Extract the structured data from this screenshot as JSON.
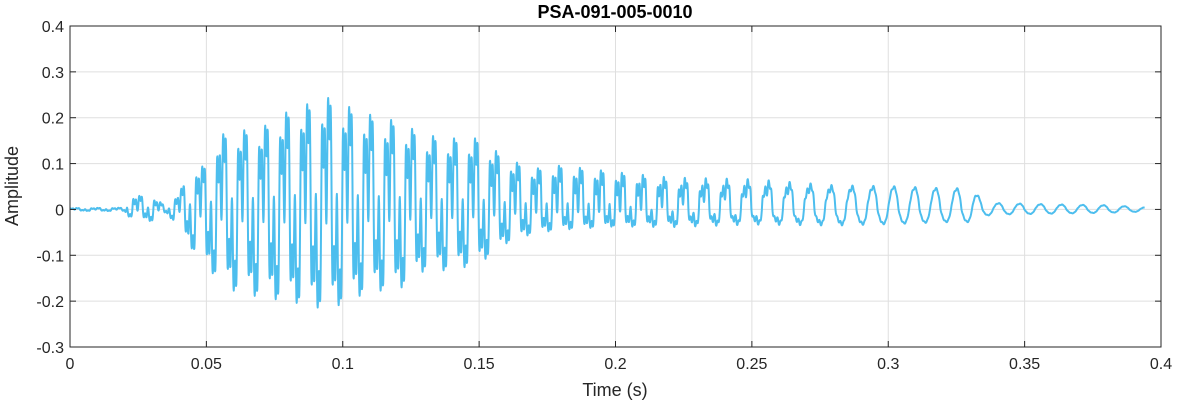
{
  "chart_data": {
    "type": "line",
    "title": "PSA-091-005-0010",
    "xlabel": "Time (s)",
    "ylabel": "Amplitude",
    "xlim": [
      0,
      0.4
    ],
    "ylim": [
      -0.3,
      0.4
    ],
    "grid": true,
    "x_ticks": [
      0,
      0.05,
      0.1,
      0.15,
      0.2,
      0.25,
      0.3,
      0.35,
      0.4
    ],
    "x_tick_labels": [
      "0",
      "0.05",
      "0.1",
      "0.15",
      "0.2",
      "0.25",
      "0.3",
      "0.35",
      "0.4"
    ],
    "y_ticks": [
      -0.3,
      -0.2,
      -0.1,
      0,
      0.1,
      0.2,
      0.3,
      0.4
    ],
    "y_tick_labels": [
      "-0.3",
      "-0.2",
      "-0.1",
      "0",
      "0.1",
      "0.2",
      "0.3",
      "0.4"
    ],
    "series": [
      {
        "color": "#4DBEEE",
        "x_end": 0.394,
        "envelope": {
          "t": [
            0,
            0.02,
            0.021,
            0.03,
            0.035,
            0.04,
            0.045,
            0.05,
            0.055,
            0.06,
            0.07,
            0.08,
            0.09,
            0.095,
            0.1,
            0.11,
            0.12,
            0.13,
            0.14,
            0.15,
            0.16,
            0.17,
            0.18,
            0.2,
            0.22,
            0.25,
            0.28,
            0.3,
            0.32,
            0.33,
            0.335,
            0.34,
            0.36,
            0.38,
            0.394
          ],
          "pos": [
            0.004,
            0.005,
            0.04,
            0.04,
            0.01,
            0.05,
            0.12,
            0.13,
            0.22,
            0.23,
            0.24,
            0.29,
            0.32,
            0.33,
            0.31,
            0.28,
            0.26,
            0.22,
            0.21,
            0.21,
            0.15,
            0.12,
            0.13,
            0.11,
            0.09,
            0.08,
            0.06,
            0.055,
            0.05,
            0.05,
            0.02,
            0.015,
            0.012,
            0.01,
            0.005
          ],
          "neg": [
            -0.004,
            -0.005,
            -0.02,
            -0.035,
            -0.01,
            -0.05,
            -0.12,
            -0.17,
            -0.21,
            -0.24,
            -0.26,
            -0.27,
            -0.29,
            -0.29,
            -0.28,
            -0.24,
            -0.24,
            -0.18,
            -0.18,
            -0.16,
            -0.1,
            -0.07,
            -0.06,
            -0.05,
            -0.05,
            -0.04,
            -0.04,
            -0.035,
            -0.03,
            -0.03,
            -0.015,
            -0.012,
            -0.01,
            -0.008,
            -0.005
          ]
        }
      }
    ]
  }
}
